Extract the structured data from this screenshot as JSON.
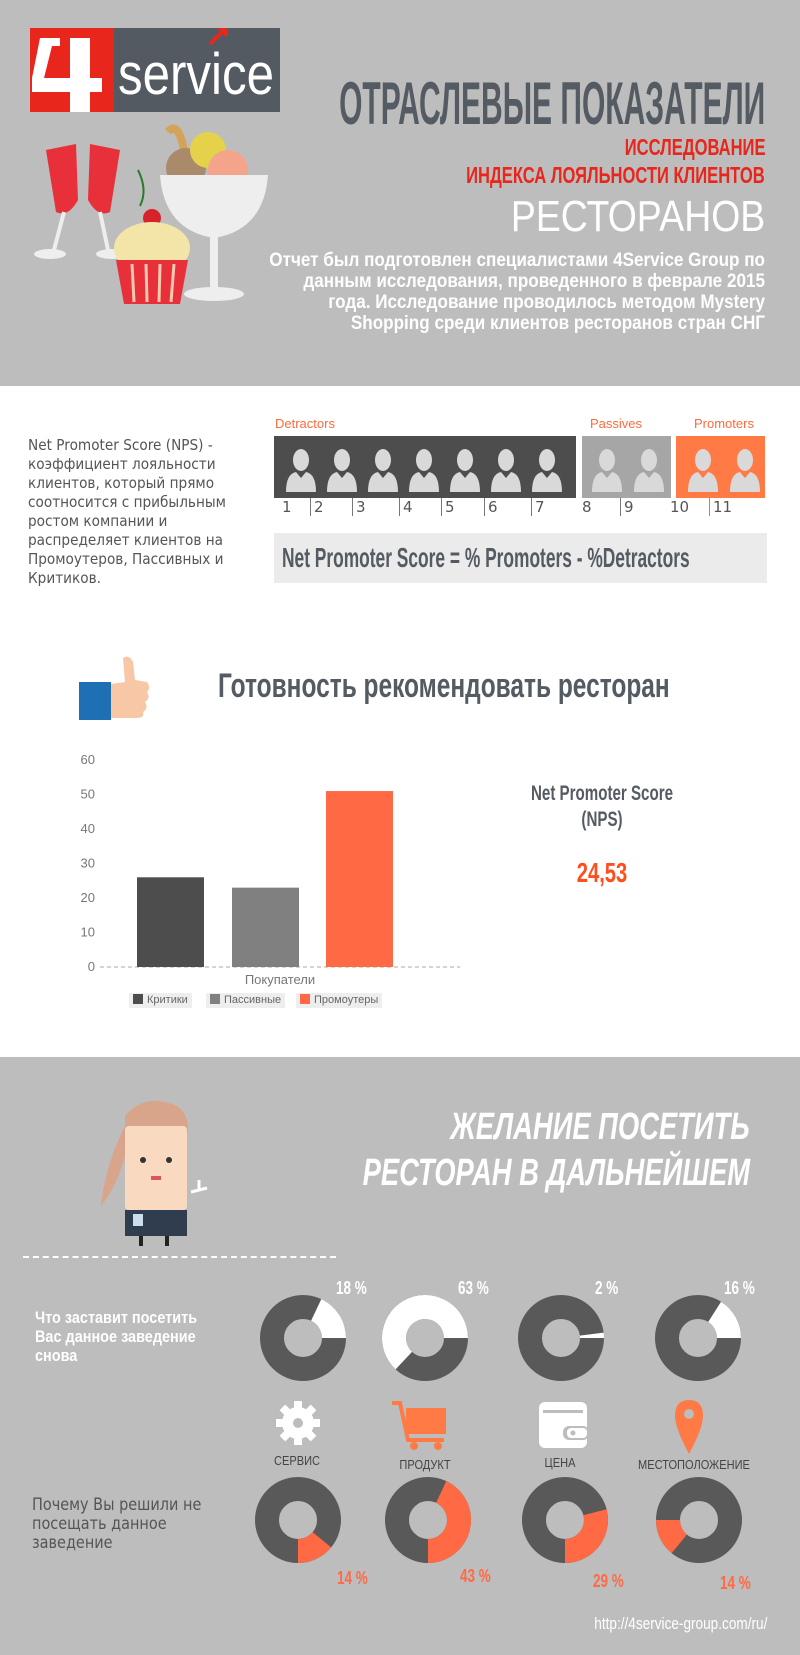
{
  "header": {
    "logo_text": "4service",
    "title": "ОТРАСЛЕВЫЕ ПОКАЗАТЕЛИ",
    "subtitle_line1": "ИССЛЕДОВАНИЕ",
    "subtitle_line2": "ИНДЕКСА ЛОЯЛЬНОСТИ КЛИЕНТОВ",
    "subtitle_big": "РЕСТОРАНОВ",
    "intro": "Отчет был подготовлен специалистами 4Service Group по данным исследования, проведенного в феврале 2015 года. Исследование проводилось методом Mystery Shopping среди клиентов ресторанов стран СНГ"
  },
  "nps": {
    "description": "Net Promoter Score (NPS) - коэффициент лояльности клиентов, который прямо соотносится с прибыльным ростом компании  и распределяет клиентов на Промоутеров, Пассивных и Критиков.",
    "groups": {
      "detractors": "Detractors",
      "passives": "Passives",
      "promoters": "Promoters"
    },
    "scale": [
      "1",
      "2",
      "3",
      "4",
      "5",
      "6",
      "7",
      "8",
      "9",
      "10",
      "11"
    ],
    "formula": "Net Promoter Score  =  % Promoters - %Detractors"
  },
  "recommend": {
    "title": "Готовность рекомендовать ресторан",
    "nps_label_line1": "Net Promoter Score",
    "nps_label_line2": "(NPS)",
    "nps_value": "24,53"
  },
  "chart_data": {
    "type": "bar",
    "title": "",
    "xlabel": "Покупатели",
    "ylabel": "",
    "ylim": [
      0,
      60
    ],
    "yticks": [
      "0",
      "10",
      "20",
      "30",
      "40",
      "50",
      "60"
    ],
    "categories": [
      "Покупатели"
    ],
    "series": [
      {
        "name": "Критики",
        "values": [
          26
        ],
        "color": "#4d4d4d"
      },
      {
        "name": "Пассивные",
        "values": [
          23
        ],
        "color": "#808080"
      },
      {
        "name": "Промоутеры",
        "values": [
          51
        ],
        "color": "#ff6a45"
      }
    ],
    "legend": "bottom"
  },
  "revisit": {
    "title_line1": "ЖЕЛАНИЕ ПОСЕТИТЬ",
    "title_line2": "РЕСТОРАН В ДАЛЬНЕЙШЕМ",
    "q1": "Что заставит посетить Вас данное заведение снова",
    "q2": "Почему Вы решили не посещать данное заведение",
    "categories": [
      "СЕРВИС",
      "ПРОДУКТ",
      "ЦЕНА",
      "МЕСТОПОЛОЖЕНИЕ"
    ],
    "q1_values": [
      18,
      63,
      2,
      16
    ],
    "q1_labels": [
      "18 %",
      "63 %",
      "2 %",
      "16 %"
    ],
    "q2_values": [
      14,
      43,
      29,
      14
    ],
    "q2_labels": [
      "14 %",
      "43 %",
      "29 %",
      "14 %"
    ]
  },
  "footer": {
    "url": "http://4service-group.com/ru/"
  },
  "colors": {
    "orange": "#ff6a45",
    "dark": "#595959",
    "red": "#e8261b",
    "bg": "#bdbdbd"
  }
}
